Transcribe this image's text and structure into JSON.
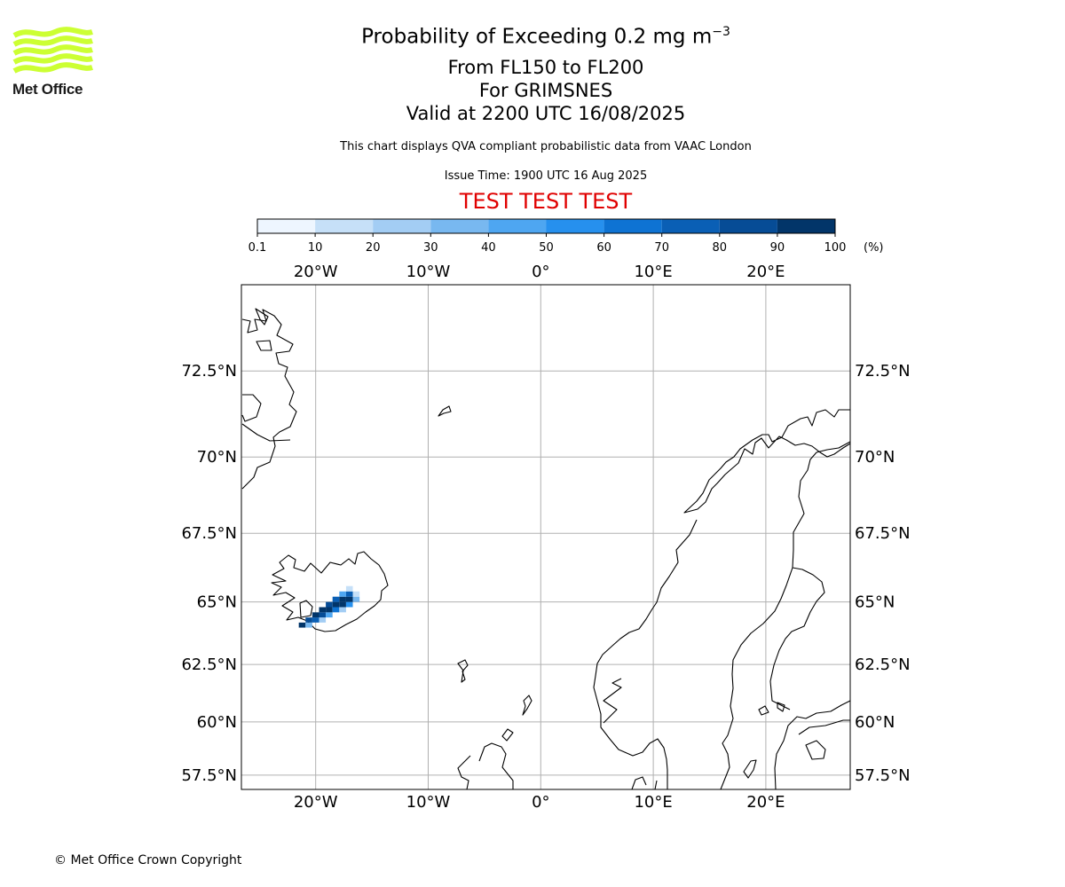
{
  "logo": {
    "text": "Met Office",
    "wave_color": "#ccff33"
  },
  "header": {
    "title_main": "Probability of Exceeding 0.2 mg m",
    "title_superscript": "−3",
    "level_range": "From FL150 to FL200",
    "volcano": "For GRIMSNES",
    "valid_time": "Valid at 2200 UTC 16/08/2025",
    "note": "This chart displays QVA compliant probabilistic data from VAAC London",
    "issue_time": "Issue Time: 1900 UTC 16 Aug 2025",
    "test_banner": "TEST TEST TEST"
  },
  "colorbar": {
    "unit_label": "(%)",
    "ticks": [
      "0.1",
      "10",
      "20",
      "30",
      "40",
      "50",
      "60",
      "70",
      "80",
      "90",
      "100"
    ],
    "colors": [
      "#eef6ff",
      "#c6e0f8",
      "#a3cdf4",
      "#78b8f0",
      "#4ea6f1",
      "#2690ee",
      "#0e73d3",
      "#0a5fb5",
      "#064c96",
      "#023569"
    ]
  },
  "map": {
    "lon_labels": [
      "20°W",
      "10°W",
      "0°",
      "10°E",
      "20°E"
    ],
    "lat_labels": [
      "72.5°N",
      "70°N",
      "67.5°N",
      "65°N",
      "62.5°N",
      "60°N",
      "57.5°N"
    ],
    "lon_values": [
      -20,
      -10,
      0,
      10,
      20
    ],
    "lat_values": [
      72.5,
      70,
      67.5,
      65,
      62.5,
      60,
      57.5
    ],
    "extent": {
      "lon_min": -26.6,
      "lon_max": 27.5,
      "lat_min": 56.8,
      "lat_max": 74.7
    },
    "ash_probability_cells": [
      {
        "lon": -21.2,
        "lat": 64.1,
        "p": 95
      },
      {
        "lon": -20.6,
        "lat": 64.1,
        "p": 30
      },
      {
        "lon": -20.6,
        "lat": 64.3,
        "p": 85
      },
      {
        "lon": -20.0,
        "lat": 64.3,
        "p": 75
      },
      {
        "lon": -19.4,
        "lat": 64.3,
        "p": 20
      },
      {
        "lon": -20.0,
        "lat": 64.5,
        "p": 90
      },
      {
        "lon": -19.4,
        "lat": 64.5,
        "p": 80
      },
      {
        "lon": -18.8,
        "lat": 64.5,
        "p": 40
      },
      {
        "lon": -19.4,
        "lat": 64.7,
        "p": 95
      },
      {
        "lon": -18.8,
        "lat": 64.7,
        "p": 90
      },
      {
        "lon": -18.2,
        "lat": 64.7,
        "p": 65
      },
      {
        "lon": -17.6,
        "lat": 64.7,
        "p": 25
      },
      {
        "lon": -18.8,
        "lat": 64.9,
        "p": 85
      },
      {
        "lon": -18.2,
        "lat": 64.9,
        "p": 95
      },
      {
        "lon": -17.6,
        "lat": 64.9,
        "p": 90
      },
      {
        "lon": -17.0,
        "lat": 64.9,
        "p": 50
      },
      {
        "lon": -18.2,
        "lat": 65.1,
        "p": 75
      },
      {
        "lon": -17.6,
        "lat": 65.1,
        "p": 95
      },
      {
        "lon": -17.0,
        "lat": 65.1,
        "p": 90
      },
      {
        "lon": -16.4,
        "lat": 65.1,
        "p": 30
      },
      {
        "lon": -17.6,
        "lat": 65.3,
        "p": 45
      },
      {
        "lon": -17.0,
        "lat": 65.3,
        "p": 70
      },
      {
        "lon": -16.4,
        "lat": 65.3,
        "p": 15
      },
      {
        "lon": -17.0,
        "lat": 65.5,
        "p": 10
      }
    ]
  },
  "footer": {
    "copyright": "© Met Office Crown Copyright"
  }
}
